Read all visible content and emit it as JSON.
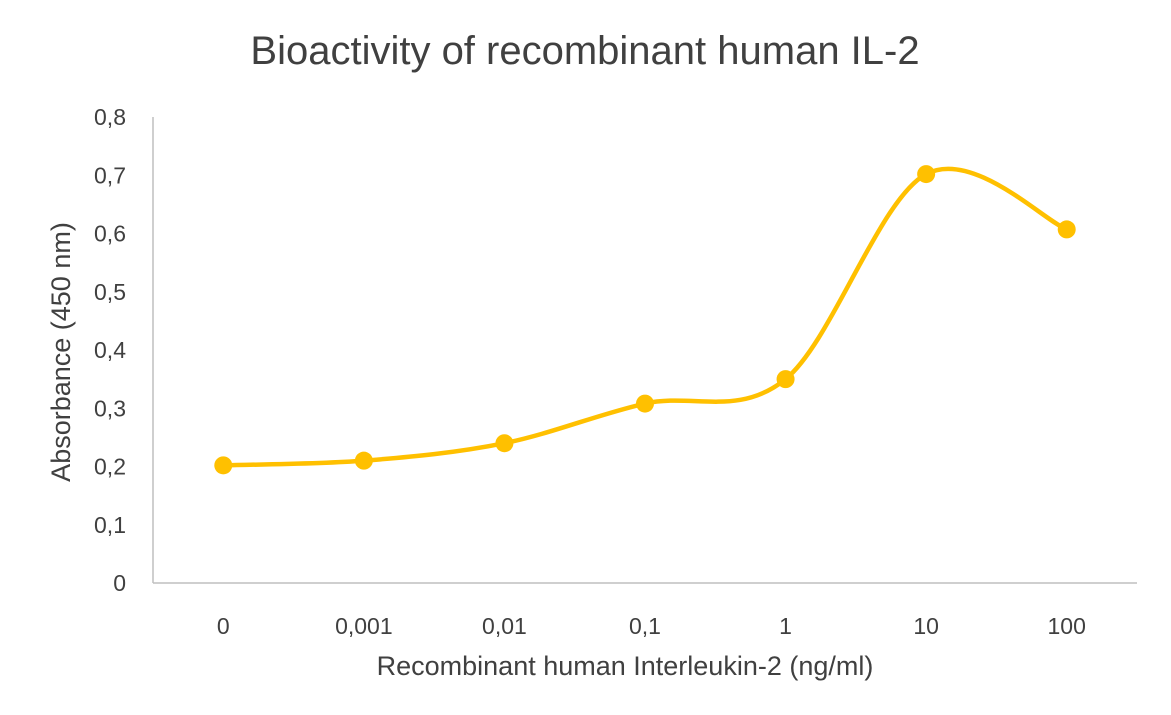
{
  "chart_data": {
    "type": "line",
    "title": "Bioactivity of recombinant human IL-2",
    "xlabel": "Recombinant  human  Interleukin-2  (ng/ml)",
    "ylabel": "Absorbance  (450 nm)",
    "categories": [
      "0",
      "0,001",
      "0,01",
      "0,1",
      "1",
      "10",
      "100"
    ],
    "y_ticks": [
      "0",
      "0,1",
      "0,2",
      "0,3",
      "0,4",
      "0,5",
      "0,6",
      "0,7",
      "0,8"
    ],
    "ylim": [
      0,
      0.8
    ],
    "grid": false,
    "legend": "none",
    "smooth": true,
    "color": "#FFC000",
    "series": [
      {
        "values": [
          0.202,
          0.21,
          0.24,
          0.308,
          0.35,
          0.702,
          0.607
        ]
      }
    ]
  }
}
